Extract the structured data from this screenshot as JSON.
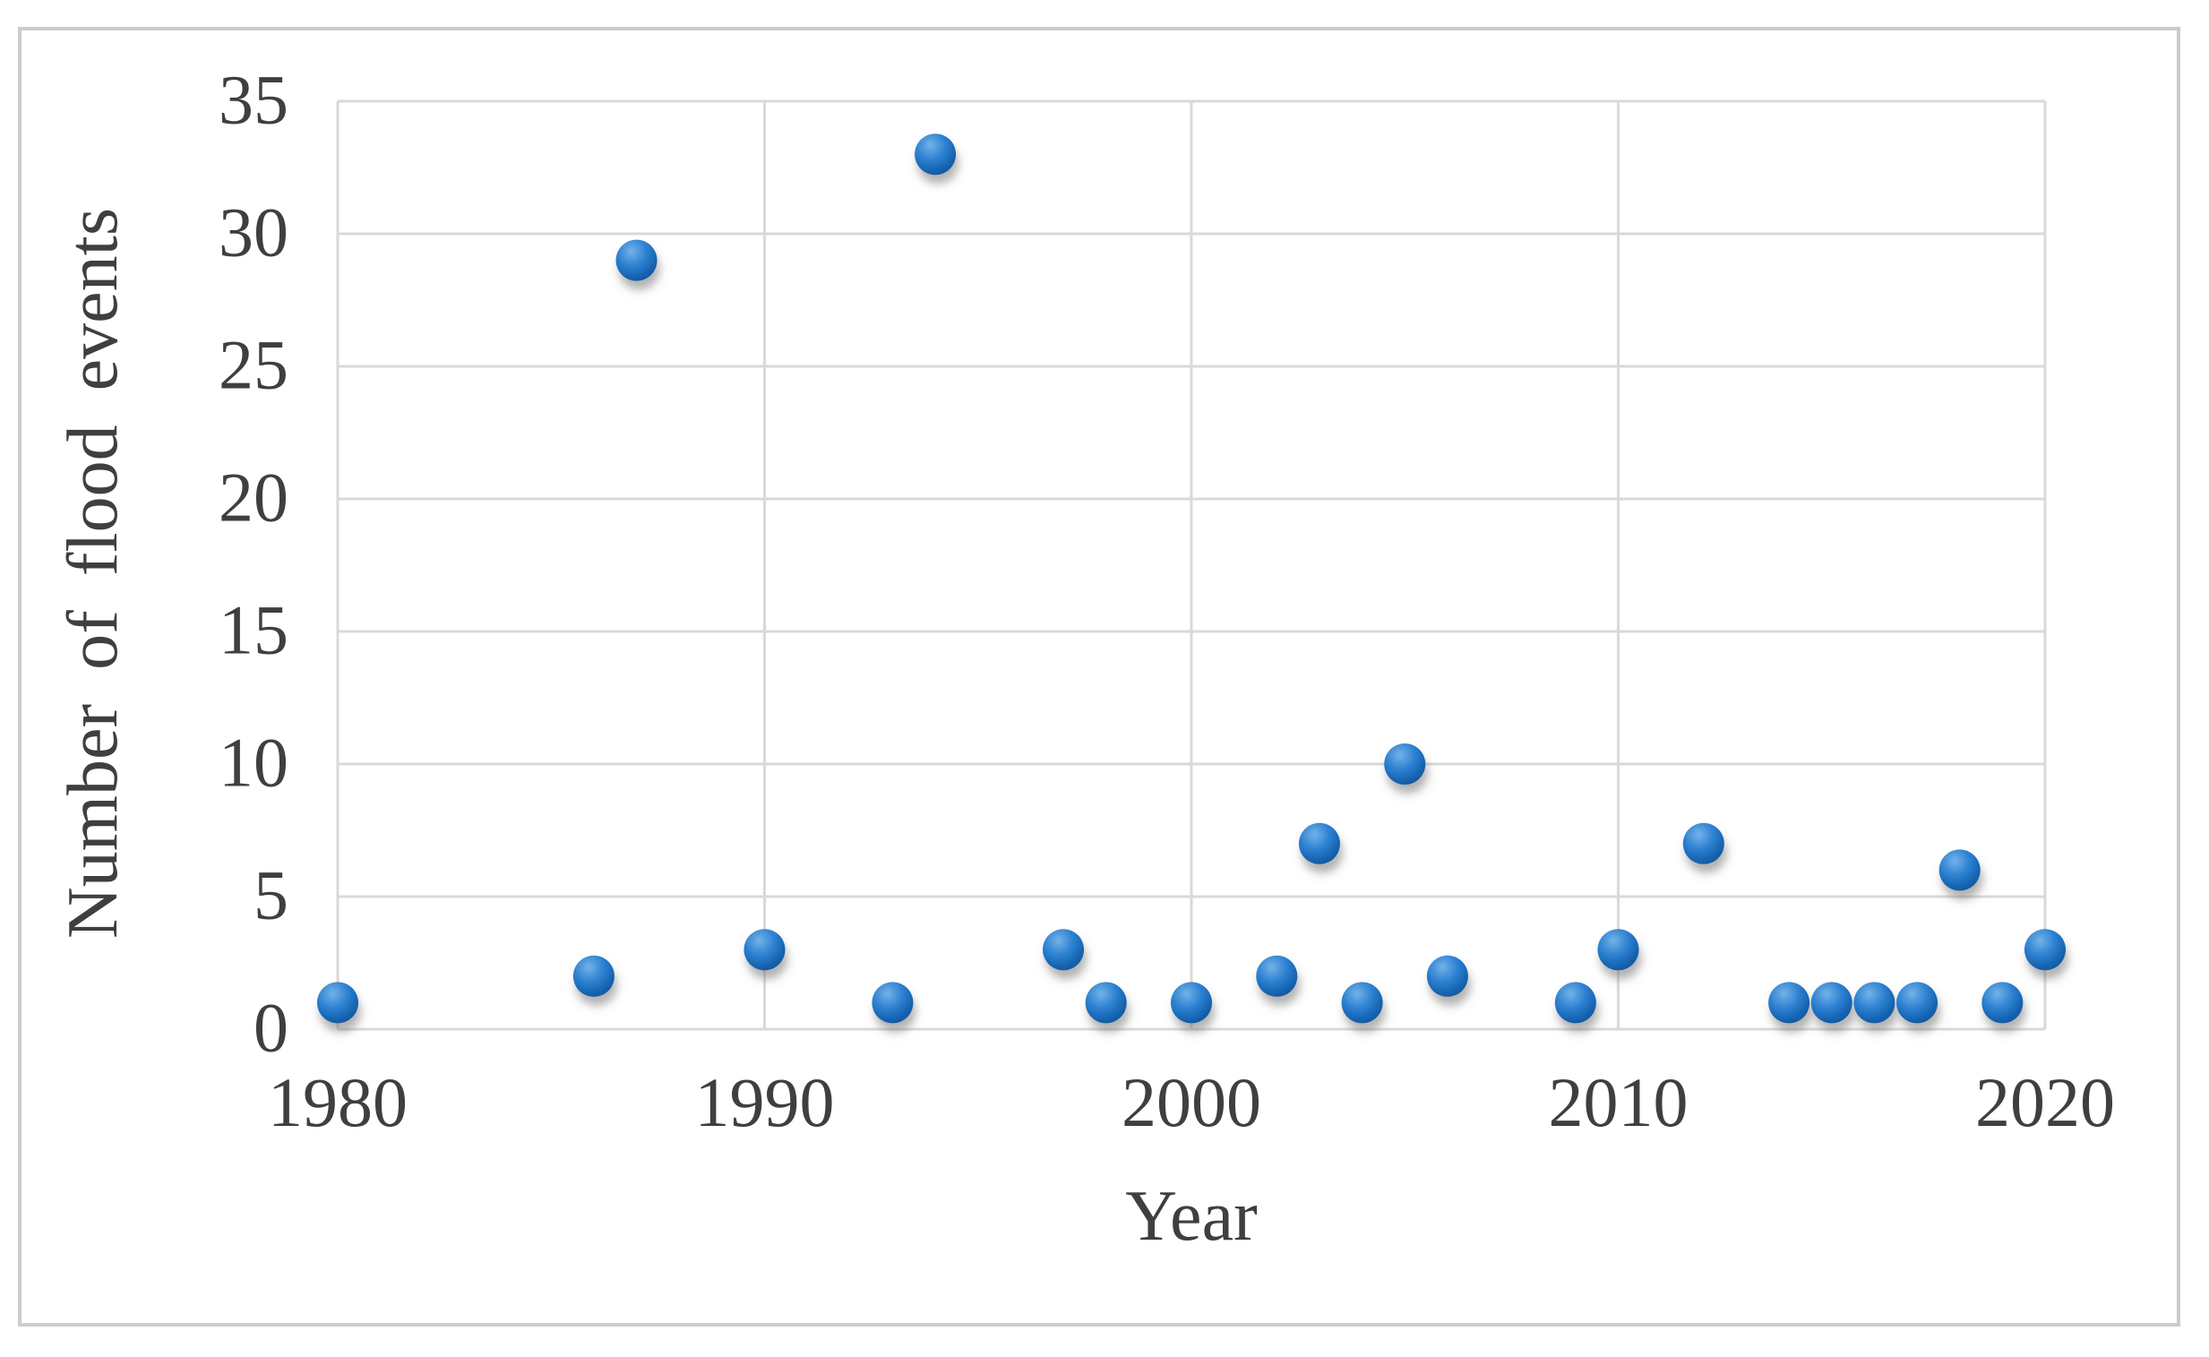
{
  "figure": {
    "background": "#ffffff",
    "frame_border_color": "#cccccc",
    "text_color": "#3f3f3f"
  },
  "chart_data": {
    "type": "scatter",
    "title": "",
    "xlabel": "Year",
    "ylabel": "Number of flood events",
    "xlim": [
      1980,
      2020
    ],
    "ylim": [
      0,
      35
    ],
    "x_ticks": [
      1980,
      1990,
      2000,
      2010,
      2020
    ],
    "y_ticks": [
      0,
      5,
      10,
      15,
      20,
      25,
      30,
      35
    ],
    "grid": true,
    "legend": false,
    "grid_color": "#d9d9d9",
    "marker_color": "#1f74c4",
    "marker_gradient": [
      "#74b2e8",
      "#2e82d2",
      "#1463b0",
      "#0d4e91"
    ],
    "marker_shadow_color": "#666666",
    "points": [
      {
        "year": 1980,
        "events": 1
      },
      {
        "year": 1986,
        "events": 2
      },
      {
        "year": 1987,
        "events": 29
      },
      {
        "year": 1990,
        "events": 3
      },
      {
        "year": 1993,
        "events": 1
      },
      {
        "year": 1994,
        "events": 33
      },
      {
        "year": 1997,
        "events": 3
      },
      {
        "year": 1998,
        "events": 1
      },
      {
        "year": 2000,
        "events": 1
      },
      {
        "year": 2002,
        "events": 2
      },
      {
        "year": 2003,
        "events": 7
      },
      {
        "year": 2004,
        "events": 1
      },
      {
        "year": 2005,
        "events": 10
      },
      {
        "year": 2006,
        "events": 2
      },
      {
        "year": 2009,
        "events": 1
      },
      {
        "year": 2010,
        "events": 3
      },
      {
        "year": 2012,
        "events": 7
      },
      {
        "year": 2014,
        "events": 1
      },
      {
        "year": 2015,
        "events": 1
      },
      {
        "year": 2016,
        "events": 1
      },
      {
        "year": 2017,
        "events": 1
      },
      {
        "year": 2018,
        "events": 6
      },
      {
        "year": 2019,
        "events": 1
      },
      {
        "year": 2020,
        "events": 3
      }
    ]
  }
}
